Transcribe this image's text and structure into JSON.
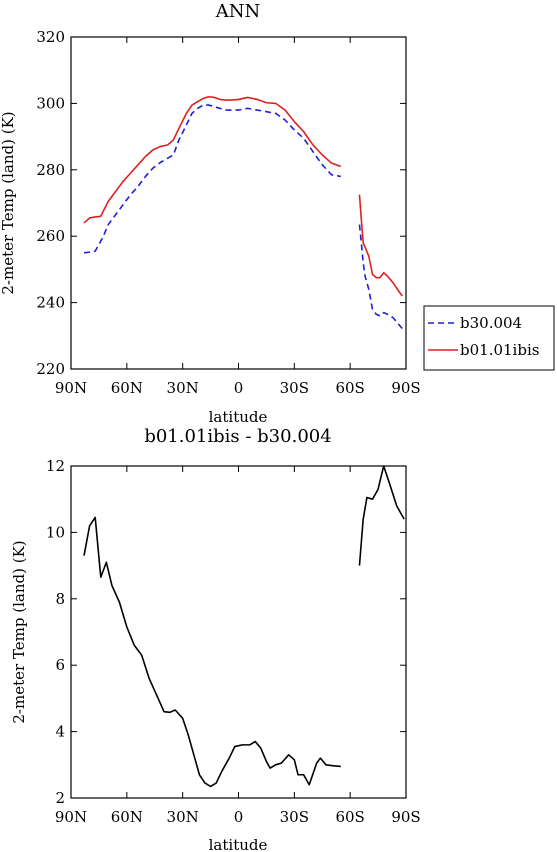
{
  "chart_data": [
    {
      "type": "line",
      "title": "ANN",
      "xlabel": "latitude",
      "ylabel": "2-meter Temp (land) (K)",
      "xlim": [
        90,
        -90
      ],
      "ylim": [
        220,
        320
      ],
      "xticks": [
        90,
        60,
        30,
        0,
        -30,
        -60,
        -90
      ],
      "xtick_labels": [
        "90N",
        "60N",
        "30N",
        "0",
        "30S",
        "60S",
        "90S"
      ],
      "yticks": [
        220,
        240,
        260,
        280,
        300,
        320
      ],
      "ytick_labels": [
        "220",
        "240",
        "260",
        "280",
        "300",
        "320"
      ],
      "legend_position": "outside-right-bottom",
      "series": [
        {
          "name": "b30.004",
          "color": "#1f1fd6",
          "dash": "dashed",
          "segments": [
            [
              [
                83,
                255
              ],
              [
                80,
                255.2
              ],
              [
                77,
                255.5
              ],
              [
                73,
                259.5
              ],
              [
                70,
                263.5
              ],
              [
                66,
                266.5
              ],
              [
                62,
                269.5
              ],
              [
                58,
                272.5
              ],
              [
                54,
                275
              ],
              [
                50,
                278
              ],
              [
                46,
                280.5
              ],
              [
                42,
                282.2
              ],
              [
                38,
                283.5
              ],
              [
                35,
                284.5
              ],
              [
                32,
                289
              ],
              [
                28,
                293.5
              ],
              [
                25,
                297
              ],
              [
                22,
                298.5
              ],
              [
                19,
                299.5
              ],
              [
                16,
                299.5
              ],
              [
                13,
                299
              ],
              [
                10,
                298.5
              ],
              [
                7,
                298
              ],
              [
                4,
                298
              ],
              [
                0,
                298
              ],
              [
                -5,
                298.5
              ],
              [
                -10,
                298
              ],
              [
                -15,
                297.5
              ],
              [
                -20,
                297
              ],
              [
                -25,
                295
              ],
              [
                -30,
                292
              ],
              [
                -35,
                289.5
              ],
              [
                -40,
                285.5
              ],
              [
                -45,
                281.5
              ],
              [
                -50,
                278.5
              ],
              [
                -55,
                278
              ]
            ],
            [
              [
                -65,
                263.5
              ],
              [
                -66,
                258
              ],
              [
                -67,
                252
              ],
              [
                -68,
                248
              ],
              [
                -70,
                244
              ],
              [
                -72,
                238
              ],
              [
                -74,
                236.5
              ],
              [
                -76,
                236
              ],
              [
                -78,
                237
              ],
              [
                -80,
                236.5
              ],
              [
                -83,
                235.5
              ],
              [
                -86,
                233.5
              ],
              [
                -89,
                231.5
              ]
            ]
          ]
        },
        {
          "name": "b01.01ibis",
          "color": "#e02020",
          "dash": "solid",
          "segments": [
            [
              [
                83,
                264
              ],
              [
                80,
                265.5
              ],
              [
                77,
                265.8
              ],
              [
                74,
                266
              ],
              [
                70,
                270.5
              ],
              [
                66,
                273.5
              ],
              [
                62,
                276.5
              ],
              [
                58,
                279
              ],
              [
                54,
                281.5
              ],
              [
                50,
                284
              ],
              [
                46,
                286
              ],
              [
                42,
                287
              ],
              [
                38,
                287.5
              ],
              [
                35,
                289
              ],
              [
                32,
                292.5
              ],
              [
                28,
                297
              ],
              [
                25,
                299.5
              ],
              [
                22,
                300.5
              ],
              [
                19,
                301.5
              ],
              [
                16,
                302
              ],
              [
                13,
                301.8
              ],
              [
                10,
                301.2
              ],
              [
                7,
                301
              ],
              [
                4,
                301
              ],
              [
                0,
                301.2
              ],
              [
                -5,
                301.8
              ],
              [
                -10,
                301.2
              ],
              [
                -15,
                300.2
              ],
              [
                -20,
                300
              ],
              [
                -25,
                298
              ],
              [
                -30,
                294.5
              ],
              [
                -35,
                291.5
              ],
              [
                -40,
                287.5
              ],
              [
                -45,
                284.5
              ],
              [
                -50,
                282
              ],
              [
                -55,
                281
              ]
            ],
            [
              [
                -65,
                272.5
              ],
              [
                -66,
                265
              ],
              [
                -67,
                258
              ],
              [
                -70,
                254
              ],
              [
                -72,
                248.5
              ],
              [
                -74,
                247.5
              ],
              [
                -76,
                247.5
              ],
              [
                -78,
                249
              ],
              [
                -80,
                248
              ],
              [
                -83,
                246
              ],
              [
                -86,
                243.5
              ],
              [
                -88,
                242
              ]
            ]
          ]
        }
      ]
    },
    {
      "type": "line",
      "title": "b01.01ibis - b30.004",
      "xlabel": "latitude",
      "ylabel": "2-meter Temp (land) (K)",
      "xlim": [
        90,
        -90
      ],
      "ylim": [
        2,
        12
      ],
      "xticks": [
        90,
        60,
        30,
        0,
        -30,
        -60,
        -90
      ],
      "xtick_labels": [
        "90N",
        "60N",
        "30N",
        "0",
        "30S",
        "60S",
        "90S"
      ],
      "yticks": [
        2,
        4,
        6,
        8,
        10,
        12
      ],
      "ytick_labels": [
        "2",
        "4",
        "6",
        "8",
        "10",
        "12"
      ],
      "series": [
        {
          "color": "#000000",
          "dash": "solid",
          "segments": [
            [
              [
                83,
                9.3
              ],
              [
                80,
                10.2
              ],
              [
                77,
                10.45
              ],
              [
                74,
                8.65
              ],
              [
                71,
                9.1
              ],
              [
                68,
                8.4
              ],
              [
                64,
                7.9
              ],
              [
                60,
                7.15
              ],
              [
                56,
                6.6
              ],
              [
                52,
                6.3
              ],
              [
                48,
                5.6
              ],
              [
                44,
                5.1
              ],
              [
                40,
                4.6
              ],
              [
                37,
                4.58
              ],
              [
                34,
                4.65
              ],
              [
                30,
                4.4
              ],
              [
                27,
                3.9
              ],
              [
                24,
                3.3
              ],
              [
                21,
                2.7
              ],
              [
                18,
                2.45
              ],
              [
                15,
                2.35
              ],
              [
                12,
                2.45
              ],
              [
                9,
                2.8
              ],
              [
                5,
                3.2
              ],
              [
                2,
                3.55
              ],
              [
                -2,
                3.6
              ],
              [
                -6,
                3.6
              ],
              [
                -9,
                3.7
              ],
              [
                -12,
                3.5
              ],
              [
                -15,
                3.1
              ],
              [
                -17,
                2.9
              ],
              [
                -20,
                3.0
              ],
              [
                -23,
                3.05
              ],
              [
                -27,
                3.3
              ],
              [
                -30,
                3.15
              ],
              [
                -32,
                2.7
              ],
              [
                -35,
                2.7
              ],
              [
                -38,
                2.4
              ],
              [
                -42,
                3.05
              ],
              [
                -44,
                3.2
              ],
              [
                -47,
                3.0
              ],
              [
                -51,
                2.97
              ],
              [
                -55,
                2.95
              ]
            ],
            [
              [
                -65,
                9.0
              ],
              [
                -67,
                10.4
              ],
              [
                -69,
                11.05
              ],
              [
                -72,
                11.0
              ],
              [
                -75,
                11.3
              ],
              [
                -78,
                12.0
              ],
              [
                -81,
                11.5
              ],
              [
                -85,
                10.8
              ],
              [
                -89,
                10.4
              ]
            ]
          ]
        }
      ]
    }
  ]
}
